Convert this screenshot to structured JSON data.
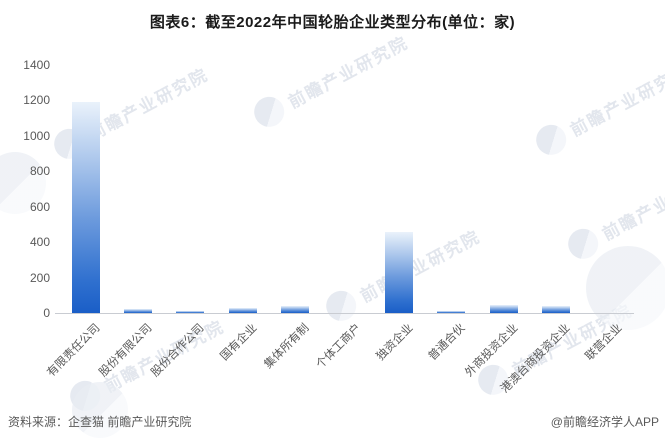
{
  "title": "图表6：截至2022年中国轮胎企业类型分布(单位：家)",
  "watermark": {
    "text": "前瞻产业研究院"
  },
  "footer": {
    "source": "资料来源：企查猫 前瞻产业研究院",
    "credit": "@前瞻经济学人APP"
  },
  "colors": {
    "bar_gradient_top": "#eaf2fb",
    "bar_gradient_bottom": "#1a5ec7",
    "axis_line": "#c9ccd2",
    "tick_text": "#595959",
    "title_text": "#1a1a1a"
  },
  "chart_data": {
    "type": "bar",
    "title": "图表6：截至2022年中国轮胎企业类型分布(单位：家)",
    "categories": [
      "有限责任公司",
      "股份有限公司",
      "股份合作公司",
      "国有企业",
      "集体所有制",
      "个体工商户",
      "独资企业",
      "普通合伙",
      "外商投资企业",
      "港澳台商投资企业",
      "联营企业"
    ],
    "values": [
      1190,
      25,
      13,
      28,
      40,
      2,
      455,
      13,
      45,
      38,
      2
    ],
    "xlabel": "",
    "ylabel": "",
    "unit": "家",
    "ylim": [
      0,
      1400
    ],
    "yticks": [
      0,
      200,
      400,
      600,
      800,
      1000,
      1200,
      1400
    ],
    "grid": false,
    "legend_position": "none"
  }
}
